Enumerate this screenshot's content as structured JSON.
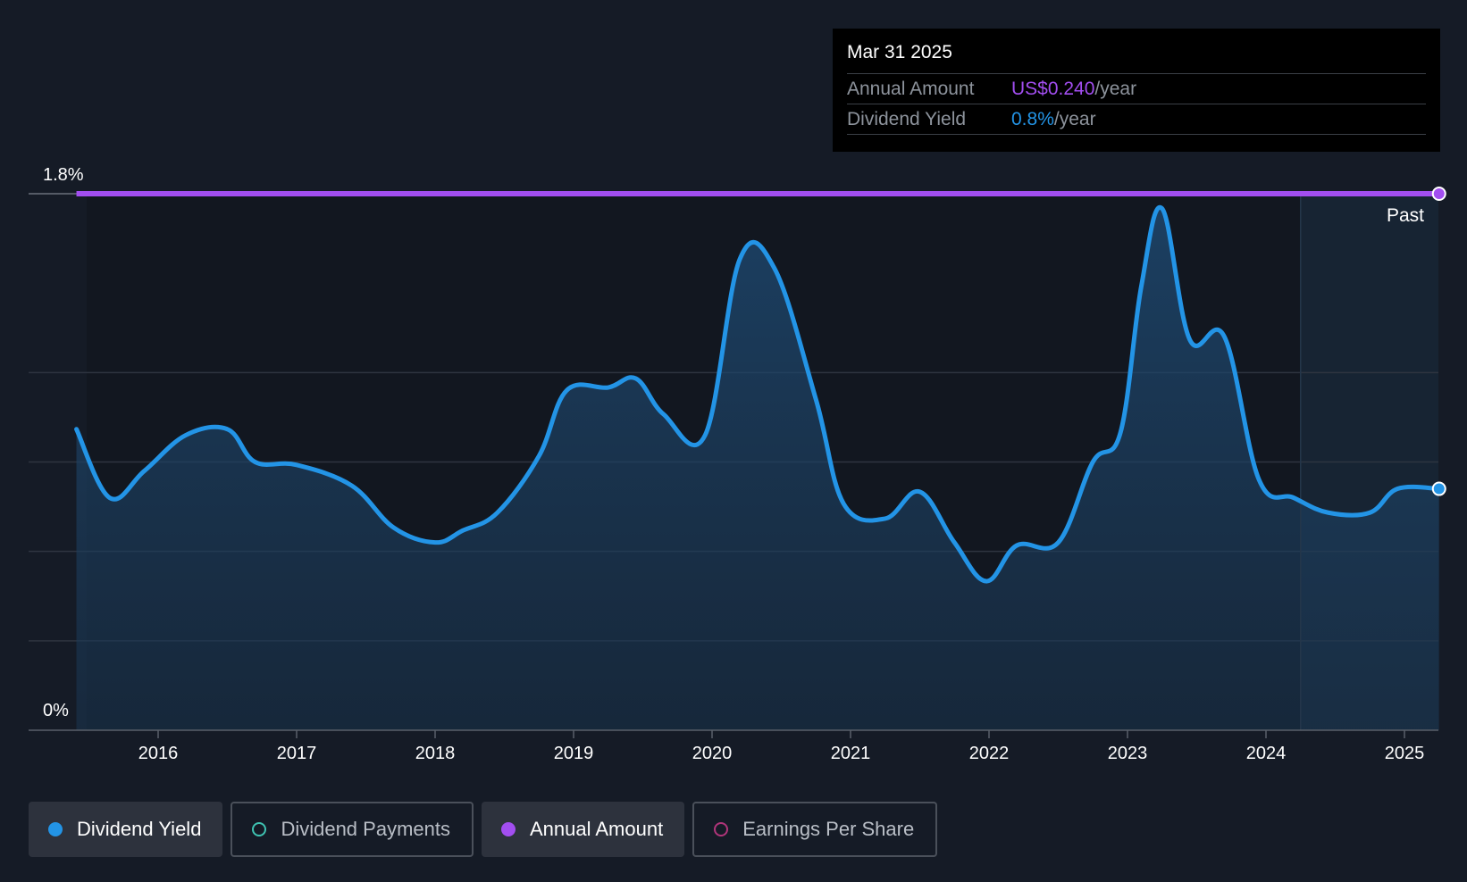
{
  "tooltip": {
    "date": "Mar 31 2025",
    "rows": [
      {
        "label": "Annual Amount",
        "value": "US$0.240",
        "unit": "/year"
      },
      {
        "label": "Dividend Yield",
        "value": "0.8%",
        "unit": "/year"
      }
    ]
  },
  "legend": [
    {
      "label": "Dividend Yield",
      "active": true,
      "color": "#2394e6"
    },
    {
      "label": "Dividend Payments",
      "active": false,
      "color": "#3fc3b2"
    },
    {
      "label": "Annual Amount",
      "active": true,
      "color": "#a24ef0"
    },
    {
      "label": "Earnings Per Share",
      "active": false,
      "color": "#b0357a"
    }
  ],
  "chart_data": {
    "type": "line",
    "ylim": [
      0,
      1.8
    ],
    "y_tick_labels": [
      "1.8%",
      "0%"
    ],
    "xlim": [
      2015.0,
      2025.25
    ],
    "x_ticks": [
      2016,
      2017,
      2018,
      2019,
      2020,
      2021,
      2022,
      2023,
      2024,
      2025
    ],
    "x_tick_labels": [
      "2016",
      "2017",
      "2018",
      "2019",
      "2020",
      "2021",
      "2022",
      "2023",
      "2024",
      "2025"
    ],
    "grid": true,
    "past_label": "Past",
    "past_start_x": 2024.25,
    "colors": {
      "yield": "#2394e6",
      "amount": "#a24ef0"
    },
    "series": [
      {
        "name": "Dividend Yield",
        "unit": "%",
        "x": [
          2015.41,
          2015.65,
          2015.9,
          2016.2,
          2016.5,
          2016.7,
          2017.0,
          2017.4,
          2017.7,
          2018.0,
          2018.2,
          2018.45,
          2018.75,
          2018.95,
          2019.25,
          2019.45,
          2019.65,
          2019.95,
          2020.2,
          2020.45,
          2020.75,
          2020.95,
          2021.25,
          2021.5,
          2021.75,
          2021.98,
          2022.2,
          2022.5,
          2022.75,
          2022.95,
          2023.1,
          2023.25,
          2023.45,
          2023.7,
          2023.95,
          2024.2,
          2024.45,
          2024.75,
          2024.95,
          2025.25
        ],
        "y": [
          1.01,
          0.78,
          0.87,
          0.99,
          1.01,
          0.9,
          0.89,
          0.82,
          0.68,
          0.63,
          0.67,
          0.73,
          0.92,
          1.14,
          1.15,
          1.18,
          1.06,
          0.99,
          1.58,
          1.55,
          1.11,
          0.76,
          0.71,
          0.8,
          0.63,
          0.5,
          0.62,
          0.63,
          0.9,
          1.0,
          1.49,
          1.75,
          1.31,
          1.32,
          0.84,
          0.78,
          0.73,
          0.73,
          0.81,
          0.81
        ]
      },
      {
        "name": "Annual Amount",
        "y_plot_level": 1.8,
        "x": [
          2015.41,
          2025.25
        ],
        "y": [
          0.24,
          0.24
        ]
      }
    ]
  }
}
